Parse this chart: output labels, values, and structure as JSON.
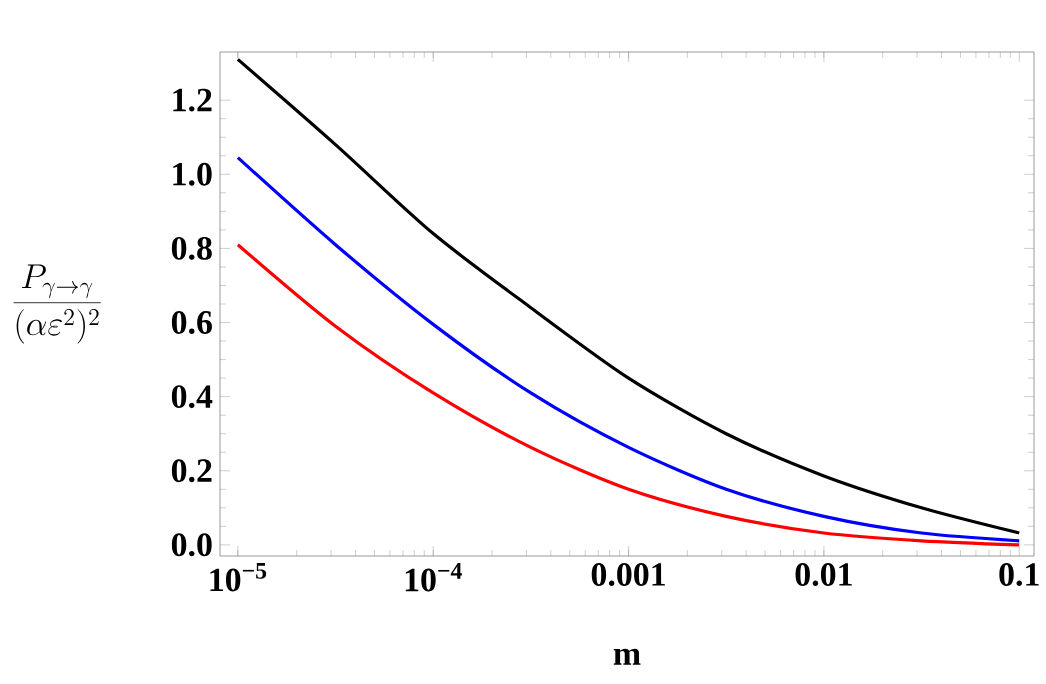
{
  "chart_data": {
    "type": "line",
    "xlabel": "m",
    "ylabel": "\\frac{P_{\\gamma\\to\\gamma}}{(\\alpha\\varepsilon^{2})^{2}}",
    "log": "x",
    "xlim": [
      8.1e-06,
      0.119
    ],
    "ylim": [
      -0.03,
      1.33
    ],
    "xticks": [
      {
        "value": 1e-05,
        "label": "10$^{−5}$"
      },
      {
        "value": 0.0001,
        "label": "10$^{−4}$"
      },
      0.001,
      0.01,
      0.1
    ],
    "yticks": [
      {
        "value": 0,
        "label": "0.0"
      },
      0.2,
      0.4,
      0.6,
      0.8,
      {
        "value": 1,
        "label": "1.0"
      },
      1.2
    ],
    "x": [
      1e-05,
      3.16e-05,
      0.0001,
      0.000316,
      0.001,
      0.00316,
      0.01,
      0.0316,
      0.1
    ],
    "marker": "none",
    "line_style": "solid",
    "series": [
      {
        "color": "#000000",
        "values": [
          1.31,
          1.08,
          0.84,
          0.64,
          0.45,
          0.3,
          0.186,
          0.1,
          0.032
        ]
      },
      {
        "color": "#0000ff",
        "values": [
          1.045,
          0.81,
          0.595,
          0.41,
          0.263,
          0.15,
          0.077,
          0.032,
          0.011
        ]
      },
      {
        "color": "#ff0000",
        "values": [
          0.81,
          0.59,
          0.41,
          0.263,
          0.15,
          0.077,
          0.032,
          0.011,
          0.0
        ]
      }
    ]
  }
}
